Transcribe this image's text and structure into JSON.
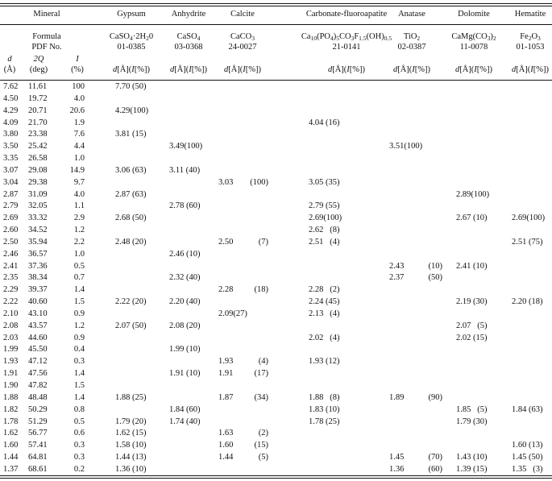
{
  "header": {
    "mineral_label": "Mineral",
    "formula_label": "Formula",
    "pdf_label": "PDF No.",
    "col_d": {
      "sym": "d",
      "unit": "(Å)"
    },
    "col_2q": {
      "sym": "2Q",
      "unit": "(deg)"
    },
    "col_i": {
      "sym": "I",
      "unit": "(%)"
    },
    "unit_label": "d[Å](I[%])",
    "minerals": [
      {
        "name": "Gypsum",
        "formula": [
          {
            "t": "CaSO"
          },
          {
            "s": "4"
          },
          {
            "t": "·2H"
          },
          {
            "s": "2"
          },
          {
            "t": "0"
          }
        ],
        "pdf": "01-0385"
      },
      {
        "name": "Anhydrite",
        "formula": [
          {
            "t": "CaSO"
          },
          {
            "s": "4"
          }
        ],
        "pdf": "03-0368"
      },
      {
        "name": "Calcite",
        "formula": [
          {
            "t": "CaCO"
          },
          {
            "s": "3"
          }
        ],
        "pdf": "24-0027"
      },
      {
        "name": "Carbonate-fluoroapatite",
        "formula": [
          {
            "t": "Ca"
          },
          {
            "s": "10"
          },
          {
            "t": "(PO"
          },
          {
            "s": "4"
          },
          {
            "t": ")"
          },
          {
            "s": "5"
          },
          {
            "t": "CO"
          },
          {
            "s": "3"
          },
          {
            "t": "F"
          },
          {
            "s": "1.5"
          },
          {
            "t": "(OH)"
          },
          {
            "s": "0.5"
          }
        ],
        "pdf": "21-0141"
      },
      {
        "name": "Anatase",
        "formula": [
          {
            "t": "TiO"
          },
          {
            "s": "2"
          }
        ],
        "pdf": "02-0387"
      },
      {
        "name": "Dolomite",
        "formula": [
          {
            "t": "CaMg(CO"
          },
          {
            "s": "3"
          },
          {
            "t": ")"
          },
          {
            "s": "2"
          }
        ],
        "pdf": "11-0078"
      },
      {
        "name": "Hematite",
        "formula": [
          {
            "t": "Fe"
          },
          {
            "s": "2"
          },
          {
            "t": "O"
          },
          {
            "s": "3"
          }
        ],
        "pdf": "01-1053"
      }
    ]
  },
  "rows": [
    [
      "7.62",
      "11.61",
      "100",
      "7.70 (50)",
      "",
      "",
      "",
      "",
      "",
      ""
    ],
    [
      "4.50",
      "19.72",
      "4.0",
      "",
      "",
      "",
      "",
      "",
      "",
      ""
    ],
    [
      "4.29",
      "20.71",
      "20.6",
      "4.29(100)",
      "",
      "",
      "",
      "",
      "",
      ""
    ],
    [
      "4.09",
      "21.70",
      "1.9",
      "",
      "",
      "",
      "4.04 (16)",
      "",
      "",
      ""
    ],
    [
      "3.80",
      "23.38",
      "7.6",
      "3.81 (15)",
      "",
      "",
      "",
      "",
      "",
      ""
    ],
    [
      "3.50",
      "25.42",
      "4.4",
      "",
      "3.49(100)",
      "",
      "",
      "3.51(100)",
      "",
      ""
    ],
    [
      "3.35",
      "26.58",
      "1.0",
      "",
      "",
      "",
      "",
      "",
      "",
      ""
    ],
    [
      "3.07",
      "29.08",
      "14.9",
      "3.06 (63)",
      "3.11 (40)",
      "",
      "",
      "",
      "",
      ""
    ],
    [
      "3.04",
      "29.38",
      "9.7",
      "",
      "",
      "3.03|(100)",
      "3.05 (35)",
      "",
      "",
      ""
    ],
    [
      "2.87",
      "31.09",
      "4.0",
      "2.87 (63)",
      "",
      "",
      "",
      "",
      "2.89(100)",
      ""
    ],
    [
      "2.79",
      "32.05",
      "1.1",
      "",
      "2.78 (60)",
      "",
      "2.79 (55)",
      "",
      "",
      ""
    ],
    [
      "2.69",
      "33.32",
      "2.9",
      "2.68 (50)",
      "",
      "",
      "2.69(100)",
      "",
      "2.67 (10)",
      "2.69(100)"
    ],
    [
      "2.60",
      "34.52",
      "1.2",
      "",
      "",
      "",
      "2.62   (8)",
      "",
      "",
      ""
    ],
    [
      "2.50",
      "35.94",
      "2.2",
      "2.48 (20)",
      "",
      "2.50|(7)",
      "2.51   (4)",
      "",
      "",
      "2.51 (75)"
    ],
    [
      "2.46",
      "36.57",
      "1.0",
      "",
      "2.46 (10)",
      "",
      "",
      "",
      "",
      ""
    ],
    [
      "2.41",
      "37.36",
      "0.5",
      "",
      "",
      "",
      "",
      "2.43|(10)",
      "2.41 (10)",
      ""
    ],
    [
      "2.35",
      "38.34",
      "0.7",
      "",
      "2.32 (40)",
      "",
      "",
      "2.37|(50)",
      "",
      ""
    ],
    [
      "2.29",
      "39.37",
      "1.4",
      "",
      "",
      "2.28|(18)",
      "2.28   (2)",
      "",
      "",
      ""
    ],
    [
      "2.22",
      "40.60",
      "1.5",
      "2.22 (20)",
      "2.20 (40)",
      "",
      "2.24 (45)",
      "",
      "2.19 (30)",
      "2.20 (18)"
    ],
    [
      "2.10",
      "43.10",
      "0.9",
      "",
      "",
      "2.09(27)",
      "2.13   (4)",
      "",
      "",
      ""
    ],
    [
      "2.08",
      "43.57",
      "1.2",
      "2.07 (50)",
      "2.08 (20)",
      "",
      "",
      "",
      "2.07   (5)",
      ""
    ],
    [
      "2.03",
      "44.60",
      "0.9",
      "",
      "",
      "",
      "2.02   (4)",
      "",
      "2.02 (15)",
      ""
    ],
    [
      "1.99",
      "45.50",
      "0.4",
      "",
      "1.99 (10)",
      "",
      "",
      "",
      "",
      ""
    ],
    [
      "1.93",
      "47.12",
      "0.3",
      "",
      "",
      "1.93|(4)",
      "1.93 (12)",
      "",
      "",
      ""
    ],
    [
      "1.91",
      "47.56",
      "1.4",
      "",
      "1.91 (10)",
      "1.91|(17)",
      "",
      "",
      "",
      ""
    ],
    [
      "1.90",
      "47.82",
      "1.5",
      "",
      "",
      "",
      "",
      "",
      "",
      ""
    ],
    [
      "1.88",
      "48.48",
      "1.4",
      "1.88 (25)",
      "",
      "1.87|(34)",
      "1.88   (8)",
      "1.89|(90)",
      "",
      ""
    ],
    [
      "1.82",
      "50.29",
      "0.8",
      "",
      "1.84 (60)",
      "",
      "1.83 (10)",
      "",
      "1.85   (5)",
      "1.84 (63)"
    ],
    [
      "1.78",
      "51.29",
      "0.5",
      "1.79 (20)",
      "1.74 (40)",
      "",
      "1.78 (25)",
      "",
      "1.79 (30)",
      ""
    ],
    [
      "1.62",
      "56.77",
      "0.6",
      "1.62 (15)",
      "",
      "1.63|(2)",
      "",
      "",
      "",
      ""
    ],
    [
      "1.60",
      "57.41",
      "0.3",
      "1.58 (10)",
      "",
      "1.60|(15)",
      "",
      "",
      "",
      "1.60 (13)"
    ],
    [
      "1.44",
      "64.81",
      "0.3",
      "1.44 (13)",
      "",
      "1.44|(5)",
      "",
      "1.45|(70)",
      "1.43 (10)",
      "1.45 (50)"
    ],
    [
      "1.37",
      "68.61",
      "0.2",
      "1.36 (10)",
      "",
      "",
      "",
      "1.36|(60)",
      "1.39 (15)",
      "1.35   (3)"
    ]
  ]
}
